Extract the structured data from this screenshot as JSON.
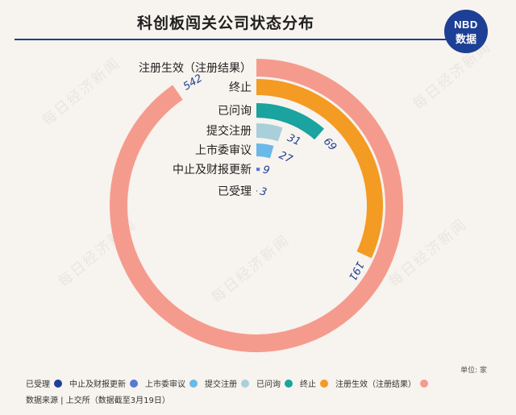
{
  "title": "科创板闯关公司状态分布",
  "logo": {
    "line1": "NBD",
    "line2": "数据"
  },
  "watermark": "每日经济新闻",
  "unit_note": "单位: 家",
  "source": "数据来源 | 上交所（数据截至3月19日）",
  "chart_data": {
    "type": "radial-bar",
    "title": "科创板闯关公司状态分布",
    "unit": "家",
    "categories": [
      "注册生效（注册结果）",
      "终止",
      "已问询",
      "提交注册",
      "上市委审议",
      "中止及财报更新",
      "已受理"
    ],
    "values": [
      542,
      191,
      69,
      31,
      27,
      9,
      3
    ],
    "colors": [
      "#f59b8e",
      "#f39b23",
      "#1aa39f",
      "#a9cfdb",
      "#6bb8ea",
      "#5878d6",
      "#1e3f96"
    ],
    "legend": [
      {
        "label": "已受理",
        "color": "#1e3f96"
      },
      {
        "label": "中止及财报更新",
        "color": "#5878d6"
      },
      {
        "label": "上市委审议",
        "color": "#6bb8ea"
      },
      {
        "label": "提交注册",
        "color": "#a9cfdb"
      },
      {
        "label": "已问询",
        "color": "#1aa39f"
      },
      {
        "label": "终止",
        "color": "#f39b23"
      },
      {
        "label": "注册生效（注册结果）",
        "color": "#f59b8e"
      }
    ]
  }
}
